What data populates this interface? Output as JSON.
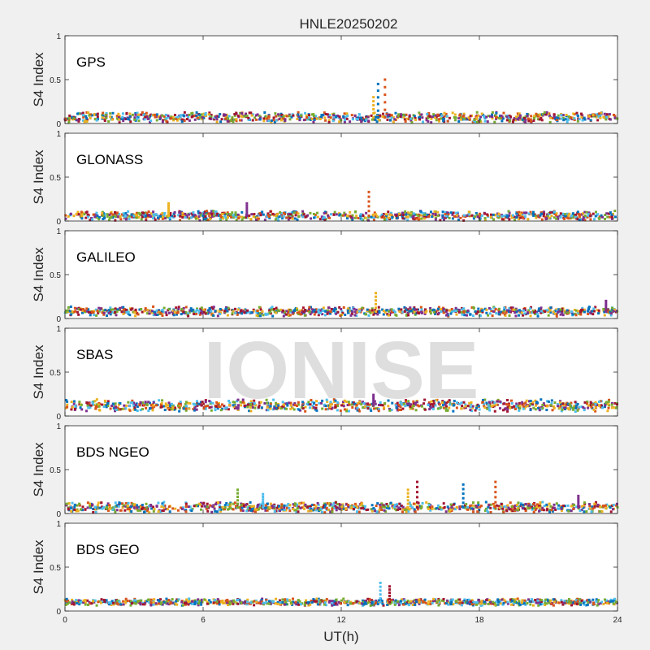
{
  "figure": {
    "title": "HNLE20250202",
    "watermark": "IONISE",
    "xlabel": "UT(h)",
    "ylabel": "S4 Index"
  },
  "colors": {
    "background": "#f0f0f0",
    "axes_background": "#ffffff",
    "axis_line": "#262626",
    "series_palette": [
      "#0072BD",
      "#D95319",
      "#EDB120",
      "#7E2F8E",
      "#77AC30",
      "#4DBEEE",
      "#A2142F"
    ]
  },
  "chart_data": [
    {
      "type": "scatter",
      "panel_label": "GPS",
      "ylabel": "S4 Index",
      "xlim": [
        0,
        24
      ],
      "ylim": [
        0,
        1
      ],
      "yticks": [
        "0",
        "0.5",
        "1"
      ],
      "xticks": [
        "0",
        "6",
        "12",
        "18",
        "24"
      ],
      "baseline": 0.07,
      "noise": 0.04,
      "spikes": [
        {
          "x": 13.6,
          "y": 0.45
        },
        {
          "x": 13.9,
          "y": 0.5
        },
        {
          "x": 13.4,
          "y": 0.3
        }
      ]
    },
    {
      "type": "scatter",
      "panel_label": "GLONASS",
      "ylabel": "S4 Index",
      "xlim": [
        0,
        24
      ],
      "ylim": [
        0,
        1
      ],
      "yticks": [
        "0",
        "0.5",
        "1"
      ],
      "xticks": [
        "0",
        "6",
        "12",
        "18",
        "24"
      ],
      "baseline": 0.06,
      "noise": 0.035,
      "spikes": [
        {
          "x": 13.2,
          "y": 0.33
        },
        {
          "x": 4.5,
          "y": 0.2
        },
        {
          "x": 7.9,
          "y": 0.2
        }
      ]
    },
    {
      "type": "scatter",
      "panel_label": "GALILEO",
      "ylabel": "S4 Index",
      "xlim": [
        0,
        24
      ],
      "ylim": [
        0,
        1
      ],
      "yticks": [
        "0",
        "0.5",
        "1"
      ],
      "xticks": [
        "0",
        "6",
        "12",
        "18",
        "24"
      ],
      "baseline": 0.08,
      "noise": 0.035,
      "spikes": [
        {
          "x": 13.5,
          "y": 0.29
        },
        {
          "x": 23.5,
          "y": 0.2
        }
      ]
    },
    {
      "type": "scatter",
      "panel_label": "SBAS",
      "ylabel": "S4 Index",
      "xlim": [
        0,
        24
      ],
      "ylim": [
        0,
        1
      ],
      "yticks": [
        "0",
        "0.5",
        "1"
      ],
      "xticks": [
        "0",
        "6",
        "12",
        "18",
        "24"
      ],
      "baseline": 0.12,
      "noise": 0.05,
      "spikes": [
        {
          "x": 13.4,
          "y": 0.24
        }
      ]
    },
    {
      "type": "scatter",
      "panel_label": "BDS NGEO",
      "ylabel": "S4 Index",
      "xlim": [
        0,
        24
      ],
      "ylim": [
        0,
        1
      ],
      "yticks": [
        "0",
        "0.5",
        "1"
      ],
      "xticks": [
        "0",
        "6",
        "12",
        "18",
        "24"
      ],
      "baseline": 0.07,
      "noise": 0.04,
      "spikes": [
        {
          "x": 7.5,
          "y": 0.27
        },
        {
          "x": 8.6,
          "y": 0.22
        },
        {
          "x": 15.3,
          "y": 0.36
        },
        {
          "x": 17.3,
          "y": 0.33
        },
        {
          "x": 18.7,
          "y": 0.36
        },
        {
          "x": 14.9,
          "y": 0.27
        },
        {
          "x": 22.3,
          "y": 0.2
        }
      ]
    },
    {
      "type": "scatter",
      "panel_label": "BDS GEO",
      "ylabel": "S4 Index",
      "xlim": [
        0,
        24
      ],
      "ylim": [
        0,
        1
      ],
      "yticks": [
        "0",
        "0.5",
        "1"
      ],
      "xticks": [
        "0",
        "6",
        "12",
        "18",
        "24"
      ],
      "baseline": 0.1,
      "noise": 0.02,
      "spikes": [
        {
          "x": 13.7,
          "y": 0.32
        },
        {
          "x": 14.1,
          "y": 0.28
        }
      ]
    }
  ]
}
